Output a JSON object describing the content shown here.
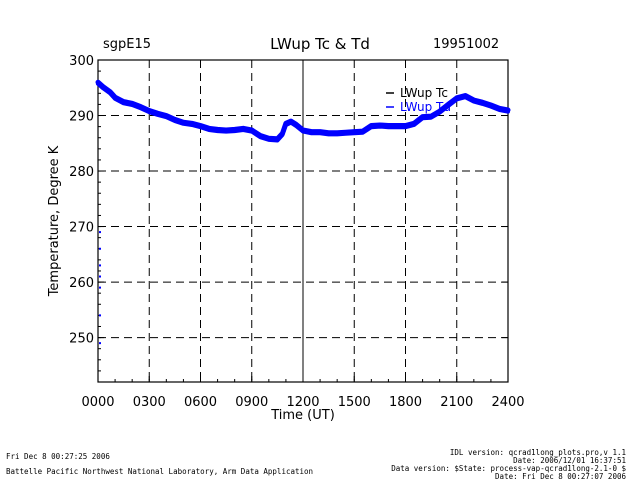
{
  "header": {
    "site": "sgpE15",
    "title": "LWup Tc & Td",
    "date": "19951002"
  },
  "footer": {
    "left_line1": "Fri Dec  8 00:27:25 2006",
    "left_line2": "Battelle Pacific Northwest National Laboratory, Arm Data Application",
    "right_line1": "IDL version: qcrad1long_plots.pro,v 1.1",
    "right_line2": "Date: 2006/12/01 16:37:51",
    "right_line3": "Data version: $State: process-vap-qcrad1long-2.1-0 $",
    "right_line4": "Date: Fri Dec  8 00:27:07 2006"
  },
  "colors": {
    "series_tc": "#0000ff",
    "series_td": "#0000ff",
    "axis": "#000000",
    "grid": "#000000"
  },
  "chart_data": {
    "type": "line",
    "xlabel": "Time (UT)",
    "ylabel": "Temperature, Degree K",
    "xlim": [
      0,
      24
    ],
    "ylim": [
      242,
      300
    ],
    "x_ticks": [
      0,
      3,
      6,
      9,
      12,
      15,
      18,
      21,
      24
    ],
    "x_tick_labels": [
      "0000",
      "0300",
      "0600",
      "0900",
      "1200",
      "1500",
      "1800",
      "2100",
      "2400"
    ],
    "y_ticks": [
      250,
      260,
      270,
      280,
      290,
      300
    ],
    "y_tick_labels": [
      "250",
      "260",
      "270",
      "280",
      "290",
      "300"
    ],
    "grid": "dashed",
    "legend_position": "top-right",
    "series": [
      {
        "name": "LWup Tc",
        "x": [
          0,
          0.3,
          0.7,
          1.0,
          1.5,
          2.0,
          2.5,
          3.0,
          3.5,
          4.0,
          4.5,
          5.0,
          5.5,
          6.0,
          6.5,
          7.0,
          7.5,
          8.0,
          8.5,
          9.0,
          9.5,
          10.0,
          10.5,
          10.8,
          11.0,
          11.3,
          11.6,
          12.0,
          12.5,
          13.0,
          13.5,
          14.0,
          14.5,
          15.0,
          15.5,
          16.0,
          16.5,
          17.0,
          17.5,
          18.0,
          18.5,
          19.0,
          19.5,
          20.0,
          20.5,
          21.0,
          21.5,
          22.0,
          22.5,
          23.0,
          23.5,
          24.0
        ],
        "values": [
          296.0,
          295.2,
          294.3,
          293.3,
          292.5,
          292.2,
          291.6,
          290.9,
          290.4,
          290.0,
          289.3,
          288.8,
          288.6,
          288.2,
          287.7,
          287.5,
          287.4,
          287.5,
          287.7,
          287.4,
          286.4,
          285.9,
          285.8,
          286.8,
          288.6,
          289.0,
          288.4,
          287.4,
          287.1,
          287.1,
          286.9,
          286.9,
          287.0,
          287.1,
          287.2,
          288.2,
          288.3,
          288.2,
          288.2,
          288.2,
          288.6,
          289.8,
          289.9,
          290.8,
          292.0,
          293.2,
          293.6,
          292.8,
          292.4,
          291.9,
          291.3,
          291.0
        ]
      },
      {
        "name": "LWup Td",
        "x": [
          0,
          0.3,
          0.7,
          1.0,
          1.5,
          2.0,
          2.5,
          3.0,
          3.5,
          4.0,
          4.5,
          5.0,
          5.5,
          6.0,
          6.5,
          7.0,
          7.5,
          8.0,
          8.5,
          9.0,
          9.5,
          10.0,
          10.5,
          10.8,
          11.0,
          11.3,
          11.6,
          12.0,
          12.5,
          13.0,
          13.5,
          14.0,
          14.5,
          15.0,
          15.5,
          16.0,
          16.5,
          17.0,
          17.5,
          18.0,
          18.5,
          19.0,
          19.5,
          20.0,
          20.5,
          21.0,
          21.5,
          22.0,
          22.5,
          23.0,
          23.5,
          24.0
        ],
        "values": [
          295.7,
          294.9,
          294.0,
          293.0,
          292.2,
          291.9,
          291.3,
          290.6,
          290.1,
          289.7,
          289.0,
          288.5,
          288.3,
          287.9,
          287.4,
          287.2,
          287.1,
          287.2,
          287.4,
          287.1,
          286.1,
          285.6,
          285.5,
          286.5,
          288.3,
          288.7,
          288.1,
          287.1,
          286.8,
          286.8,
          286.6,
          286.6,
          286.7,
          286.8,
          286.9,
          287.9,
          288.0,
          287.9,
          287.9,
          287.9,
          288.3,
          289.5,
          289.6,
          290.5,
          291.7,
          292.9,
          293.3,
          292.5,
          292.1,
          291.6,
          291.0,
          290.7
        ]
      }
    ],
    "left_edge_marks": [
      269.0,
      266.0,
      263.0,
      261.0,
      259.0,
      254.0,
      249.0
    ]
  }
}
